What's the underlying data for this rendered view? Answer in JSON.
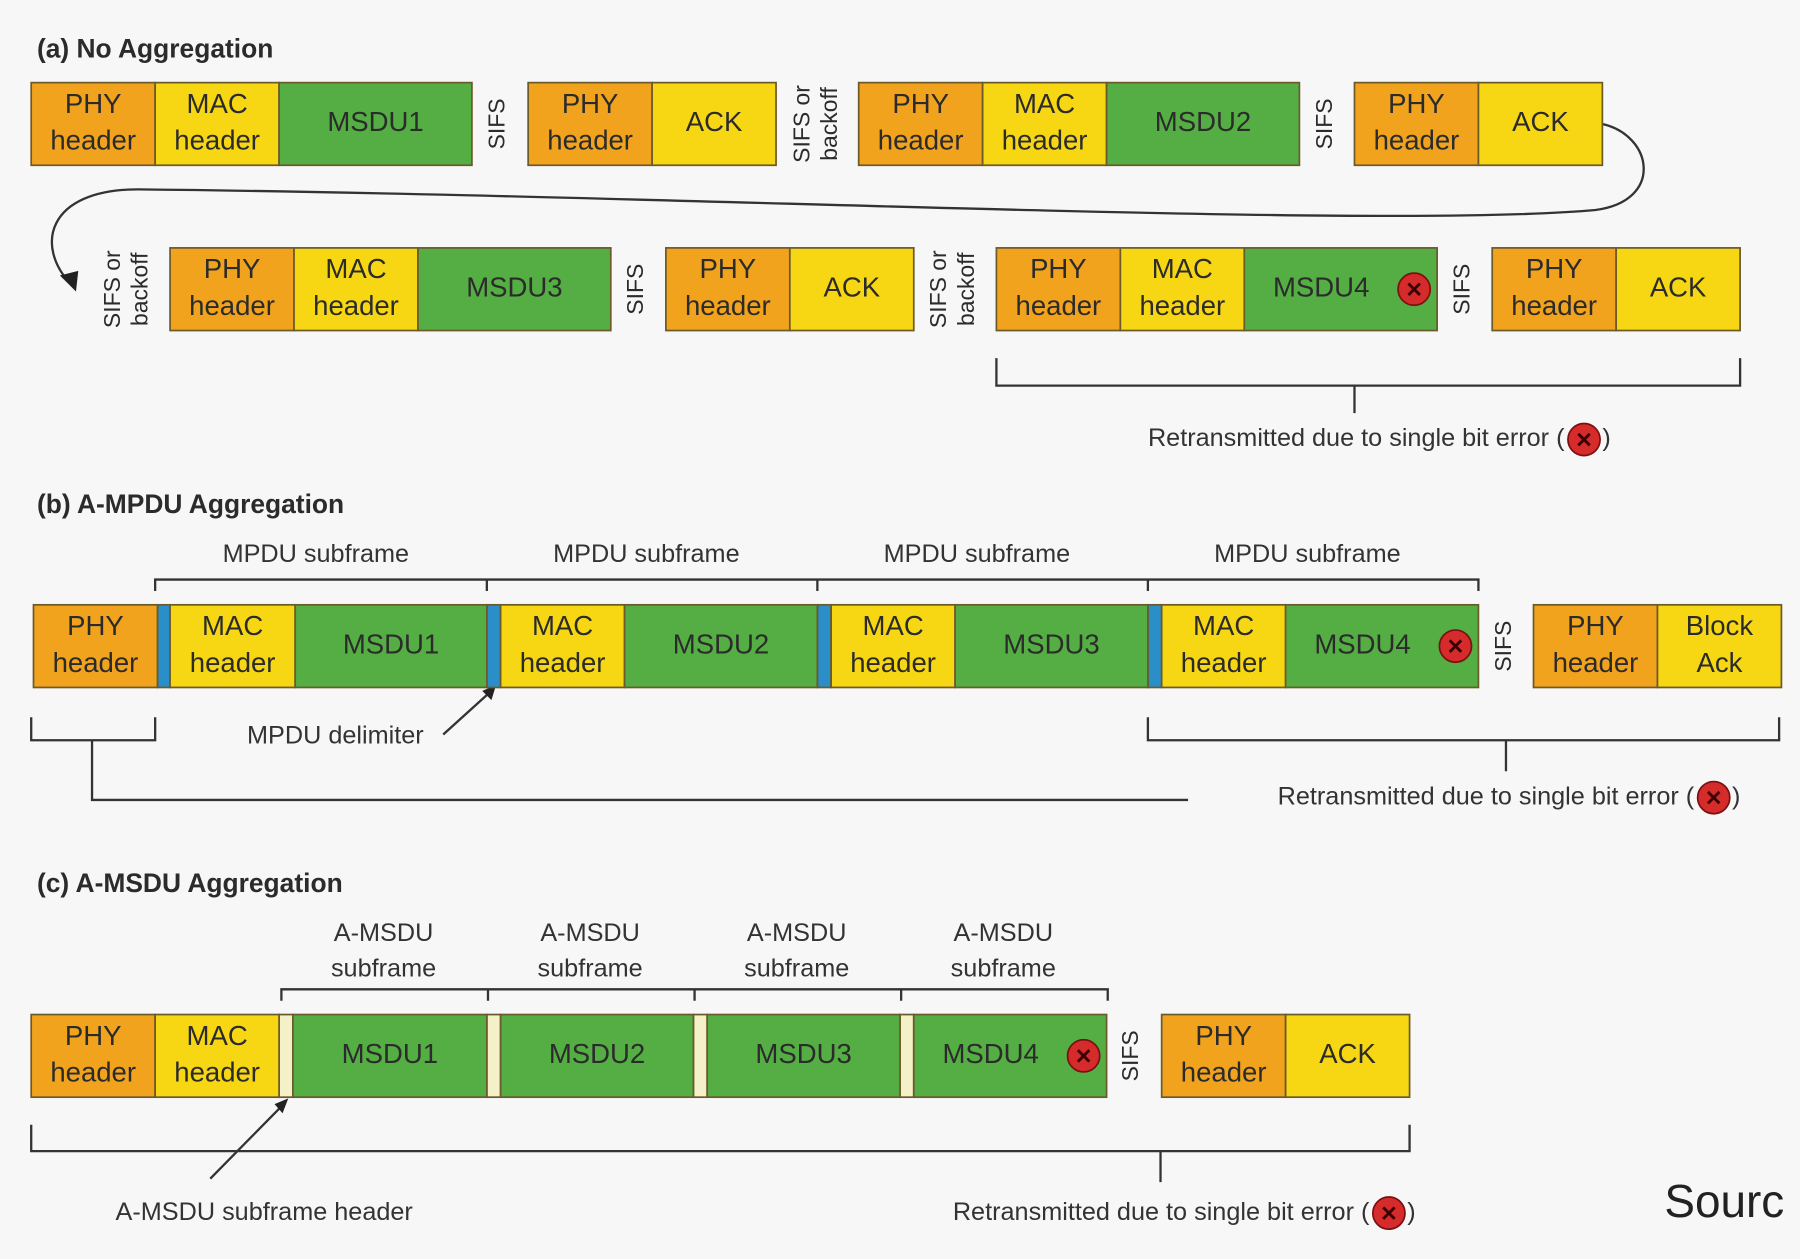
{
  "sections": [
    {
      "title": "(a) No Aggregation",
      "blocks": [
        {
          "lines": [
            "PHY",
            "header"
          ]
        },
        {
          "lines": [
            "MAC",
            "header"
          ]
        },
        {
          "lines": [
            "MSDU1"
          ]
        },
        {
          "lines": [
            "PHY",
            "header"
          ]
        },
        {
          "lines": [
            "ACK"
          ]
        },
        {
          "lines": [
            "PHY",
            "header"
          ]
        },
        {
          "lines": [
            "MAC",
            "header"
          ]
        },
        {
          "lines": [
            "MSDU2"
          ]
        },
        {
          "lines": [
            "PHY",
            "header"
          ]
        },
        {
          "lines": [
            "ACK"
          ]
        },
        {
          "lines": [
            "PHY",
            "header"
          ]
        },
        {
          "lines": [
            "MAC",
            "header"
          ]
        },
        {
          "lines": [
            "MSDU3"
          ]
        },
        {
          "lines": [
            "PHY",
            "header"
          ]
        },
        {
          "lines": [
            "ACK"
          ]
        },
        {
          "lines": [
            "PHY",
            "header"
          ]
        },
        {
          "lines": [
            "MAC",
            "header"
          ]
        },
        {
          "lines": [
            "MSDU4"
          ]
        },
        {
          "lines": [
            "PHY",
            "header"
          ]
        },
        {
          "lines": [
            "ACK"
          ]
        }
      ],
      "gaps": [
        {
          "lines": [
            "SIFS"
          ]
        },
        {
          "lines": [
            "SIFS or",
            "backoff"
          ]
        },
        {
          "lines": [
            "SIFS"
          ]
        },
        {
          "lines": [
            "SIFS or",
            "backoff"
          ]
        },
        {
          "lines": [
            "SIFS"
          ]
        },
        {
          "lines": [
            "SIFS or",
            "backoff"
          ]
        },
        {
          "lines": [
            "SIFS"
          ]
        }
      ],
      "note": [
        "Retransmitted due to single bit error (",
        ")"
      ]
    },
    {
      "title": "(b) A-MPDU Aggregation",
      "subframes": [
        {
          "lines": [
            "MPDU subframe"
          ]
        },
        {
          "lines": [
            "MPDU subframe"
          ]
        },
        {
          "lines": [
            "MPDU subframe"
          ]
        },
        {
          "lines": [
            "MPDU subframe"
          ]
        }
      ],
      "blocks": [
        {
          "lines": [
            "PHY",
            "header"
          ]
        },
        {
          "lines": [
            "MAC",
            "header"
          ]
        },
        {
          "lines": [
            "MSDU1"
          ]
        },
        {
          "lines": [
            "MAC",
            "header"
          ]
        },
        {
          "lines": [
            "MSDU2"
          ]
        },
        {
          "lines": [
            "MAC",
            "header"
          ]
        },
        {
          "lines": [
            "MSDU3"
          ]
        },
        {
          "lines": [
            "MAC",
            "header"
          ]
        },
        {
          "lines": [
            "MSDU4"
          ]
        },
        {
          "lines": [
            "PHY",
            "header"
          ]
        },
        {
          "lines": [
            "Block",
            "Ack"
          ]
        }
      ],
      "gaps": [
        {
          "lines": [
            "SIFS"
          ]
        }
      ],
      "callout": "MPDU delimiter",
      "note": [
        "Retransmitted due to single bit error (",
        ")"
      ]
    },
    {
      "title": "(c) A-MSDU Aggregation",
      "subframes": [
        {
          "lines": [
            "A-MSDU",
            "subframe"
          ]
        },
        {
          "lines": [
            "A-MSDU",
            "subframe"
          ]
        },
        {
          "lines": [
            "A-MSDU",
            "subframe"
          ]
        },
        {
          "lines": [
            "A-MSDU",
            "subframe"
          ]
        }
      ],
      "blocks": [
        {
          "lines": [
            "PHY",
            "header"
          ]
        },
        {
          "lines": [
            "MAC",
            "header"
          ]
        },
        {
          "lines": [
            "MSDU1"
          ]
        },
        {
          "lines": [
            "MSDU2"
          ]
        },
        {
          "lines": [
            "MSDU3"
          ]
        },
        {
          "lines": [
            "MSDU4"
          ]
        },
        {
          "lines": [
            "PHY",
            "header"
          ]
        },
        {
          "lines": [
            "ACK"
          ]
        }
      ],
      "gaps": [
        {
          "lines": [
            "SIFS"
          ]
        }
      ],
      "callout": "A-MSDU subframe header",
      "note": [
        "Retransmitted due to single bit error (",
        ")"
      ]
    }
  ],
  "source": "Sourc"
}
